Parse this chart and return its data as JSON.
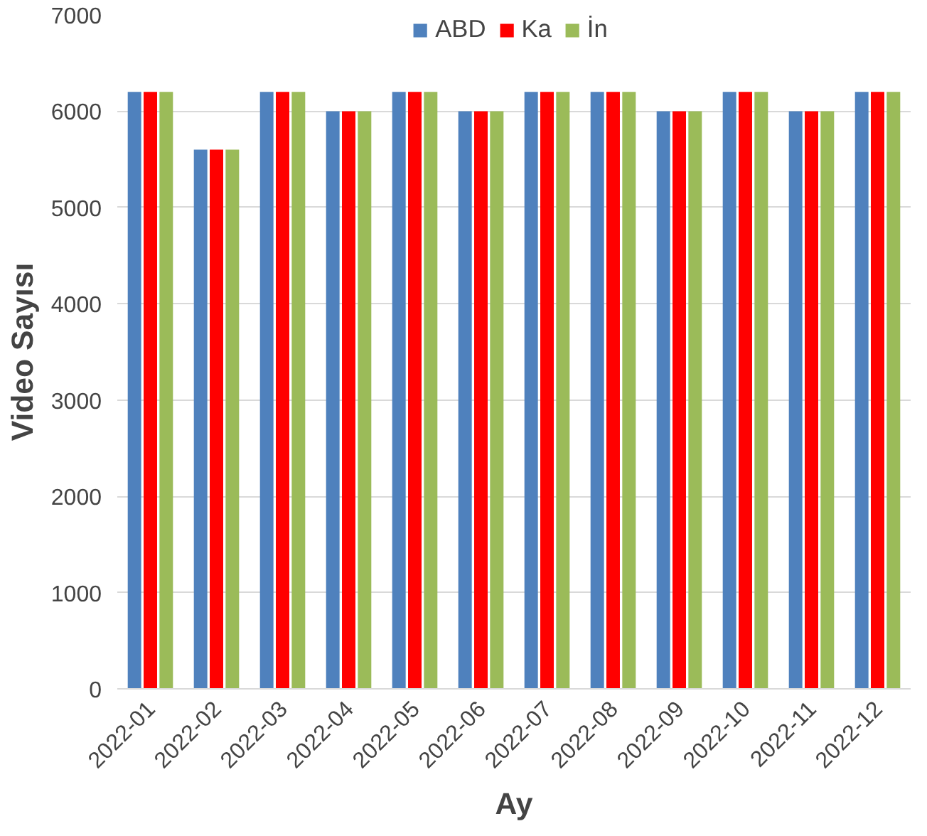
{
  "chart_data": {
    "type": "bar",
    "xlabel": "Ay",
    "ylabel": "Video Sayısı",
    "categories": [
      "2022-01",
      "2022-02",
      "2022-03",
      "2022-04",
      "2022-05",
      "2022-06",
      "2022-07",
      "2022-08",
      "2022-09",
      "2022-10",
      "2022-11",
      "2022-12"
    ],
    "series": [
      {
        "name": "ABD",
        "color": "#4f81bd",
        "values": [
          6200,
          5600,
          6200,
          6000,
          6200,
          6000,
          6200,
          6200,
          6000,
          6200,
          6000,
          6200
        ]
      },
      {
        "name": "Ka",
        "color": "#ff0000",
        "values": [
          6200,
          5600,
          6200,
          6000,
          6200,
          6000,
          6200,
          6200,
          6000,
          6200,
          6000,
          6200
        ]
      },
      {
        "name": "İn",
        "color": "#9bbb59",
        "values": [
          6200,
          5600,
          6200,
          6000,
          6200,
          6000,
          6200,
          6200,
          6000,
          6200,
          6000,
          6200
        ]
      }
    ],
    "ylim": [
      0,
      7000
    ],
    "yticks": [
      0,
      1000,
      2000,
      3000,
      4000,
      5000,
      6000,
      7000
    ],
    "grid": "y",
    "legend": "top"
  }
}
